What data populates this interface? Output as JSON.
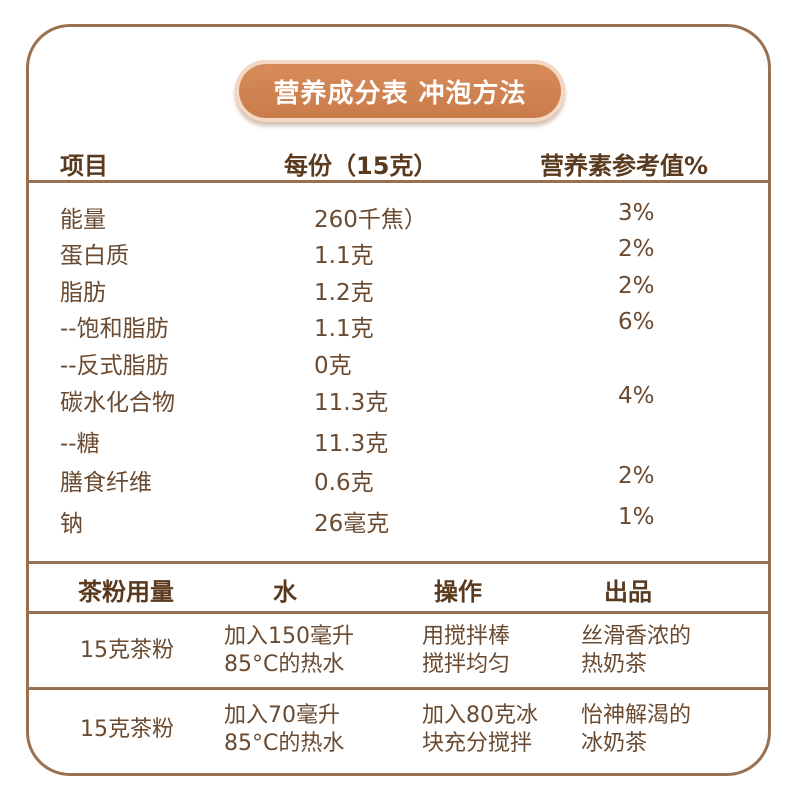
{
  "title": "营养成分表 冲泡方法",
  "nutrition": {
    "headers": {
      "item": "项目",
      "per_serving": "每份（15克）",
      "nrv": "营养素参考值%"
    },
    "rows": [
      {
        "item": "能量",
        "per_serving": "260千焦）",
        "nrv": "3%"
      },
      {
        "item": "蛋白质",
        "per_serving": "1.1克",
        "nrv": "2%"
      },
      {
        "item": "脂肪",
        "per_serving": "1.2克",
        "nrv": "2%"
      },
      {
        "item": "--饱和脂肪",
        "per_serving": "1.1克",
        "nrv": "6%"
      },
      {
        "item": "--反式脂肪",
        "per_serving": "0克",
        "nrv": ""
      },
      {
        "item": "碳水化合物",
        "per_serving": "11.3克",
        "nrv": "4%"
      },
      {
        "item": "--糖",
        "per_serving": "11.3克",
        "nrv": ""
      },
      {
        "item": "膳食纤维",
        "per_serving": "0.6克",
        "nrv": "2%"
      },
      {
        "item": "钠",
        "per_serving": "26毫克",
        "nrv": "1%"
      }
    ]
  },
  "method": {
    "headers": {
      "powder": "茶粉用量",
      "water": "水",
      "operation": "操作",
      "result": "出品"
    },
    "rows": [
      {
        "powder": "15克茶粉",
        "water": "加入150毫升\n85°C的热水",
        "operation": "用搅拌棒\n搅拌均匀",
        "result": "丝滑香浓的\n热奶茶"
      },
      {
        "powder": "15克茶粉",
        "water": "加入70毫升\n85°C的热水",
        "operation": "加入80克冰\n块充分搅拌",
        "result": "怡神解渴的\n冰奶茶"
      }
    ]
  },
  "colors": {
    "border": "#9a7150",
    "pill": "#cf844f",
    "text": "#6a4a30",
    "header_text": "#5a3a1f"
  }
}
